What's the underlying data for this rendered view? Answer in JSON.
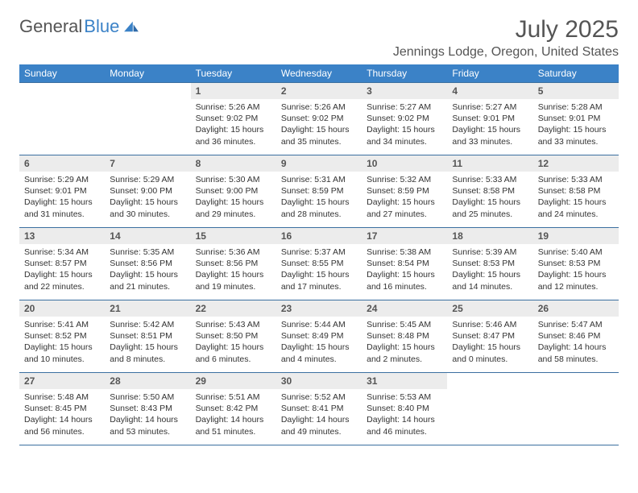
{
  "brand": {
    "name1": "General",
    "name2": "Blue"
  },
  "title": "July 2025",
  "location": "Jennings Lodge, Oregon, United States",
  "styling": {
    "header_bg": "#3b82c7",
    "header_text_color": "#ffffff",
    "daynum_bg": "#ececec",
    "border_color": "#3b6fa0",
    "page_bg": "#ffffff",
    "body_text_color": "#333333",
    "title_color": "#555555",
    "font_family": "Arial",
    "title_fontsize_pt": 22,
    "location_fontsize_pt": 12,
    "header_fontsize_pt": 9,
    "daynum_fontsize_pt": 9,
    "body_fontsize_pt": 8
  },
  "weekdays": [
    "Sunday",
    "Monday",
    "Tuesday",
    "Wednesday",
    "Thursday",
    "Friday",
    "Saturday"
  ],
  "labels": {
    "sunrise": "Sunrise:",
    "sunset": "Sunset:",
    "daylight": "Daylight:"
  },
  "weeks": [
    [
      null,
      null,
      {
        "n": "1",
        "sr": "5:26 AM",
        "ss": "9:02 PM",
        "dl": "15 hours and 36 minutes."
      },
      {
        "n": "2",
        "sr": "5:26 AM",
        "ss": "9:02 PM",
        "dl": "15 hours and 35 minutes."
      },
      {
        "n": "3",
        "sr": "5:27 AM",
        "ss": "9:02 PM",
        "dl": "15 hours and 34 minutes."
      },
      {
        "n": "4",
        "sr": "5:27 AM",
        "ss": "9:01 PM",
        "dl": "15 hours and 33 minutes."
      },
      {
        "n": "5",
        "sr": "5:28 AM",
        "ss": "9:01 PM",
        "dl": "15 hours and 33 minutes."
      }
    ],
    [
      {
        "n": "6",
        "sr": "5:29 AM",
        "ss": "9:01 PM",
        "dl": "15 hours and 31 minutes."
      },
      {
        "n": "7",
        "sr": "5:29 AM",
        "ss": "9:00 PM",
        "dl": "15 hours and 30 minutes."
      },
      {
        "n": "8",
        "sr": "5:30 AM",
        "ss": "9:00 PM",
        "dl": "15 hours and 29 minutes."
      },
      {
        "n": "9",
        "sr": "5:31 AM",
        "ss": "8:59 PM",
        "dl": "15 hours and 28 minutes."
      },
      {
        "n": "10",
        "sr": "5:32 AM",
        "ss": "8:59 PM",
        "dl": "15 hours and 27 minutes."
      },
      {
        "n": "11",
        "sr": "5:33 AM",
        "ss": "8:58 PM",
        "dl": "15 hours and 25 minutes."
      },
      {
        "n": "12",
        "sr": "5:33 AM",
        "ss": "8:58 PM",
        "dl": "15 hours and 24 minutes."
      }
    ],
    [
      {
        "n": "13",
        "sr": "5:34 AM",
        "ss": "8:57 PM",
        "dl": "15 hours and 22 minutes."
      },
      {
        "n": "14",
        "sr": "5:35 AM",
        "ss": "8:56 PM",
        "dl": "15 hours and 21 minutes."
      },
      {
        "n": "15",
        "sr": "5:36 AM",
        "ss": "8:56 PM",
        "dl": "15 hours and 19 minutes."
      },
      {
        "n": "16",
        "sr": "5:37 AM",
        "ss": "8:55 PM",
        "dl": "15 hours and 17 minutes."
      },
      {
        "n": "17",
        "sr": "5:38 AM",
        "ss": "8:54 PM",
        "dl": "15 hours and 16 minutes."
      },
      {
        "n": "18",
        "sr": "5:39 AM",
        "ss": "8:53 PM",
        "dl": "15 hours and 14 minutes."
      },
      {
        "n": "19",
        "sr": "5:40 AM",
        "ss": "8:53 PM",
        "dl": "15 hours and 12 minutes."
      }
    ],
    [
      {
        "n": "20",
        "sr": "5:41 AM",
        "ss": "8:52 PM",
        "dl": "15 hours and 10 minutes."
      },
      {
        "n": "21",
        "sr": "5:42 AM",
        "ss": "8:51 PM",
        "dl": "15 hours and 8 minutes."
      },
      {
        "n": "22",
        "sr": "5:43 AM",
        "ss": "8:50 PM",
        "dl": "15 hours and 6 minutes."
      },
      {
        "n": "23",
        "sr": "5:44 AM",
        "ss": "8:49 PM",
        "dl": "15 hours and 4 minutes."
      },
      {
        "n": "24",
        "sr": "5:45 AM",
        "ss": "8:48 PM",
        "dl": "15 hours and 2 minutes."
      },
      {
        "n": "25",
        "sr": "5:46 AM",
        "ss": "8:47 PM",
        "dl": "15 hours and 0 minutes."
      },
      {
        "n": "26",
        "sr": "5:47 AM",
        "ss": "8:46 PM",
        "dl": "14 hours and 58 minutes."
      }
    ],
    [
      {
        "n": "27",
        "sr": "5:48 AM",
        "ss": "8:45 PM",
        "dl": "14 hours and 56 minutes."
      },
      {
        "n": "28",
        "sr": "5:50 AM",
        "ss": "8:43 PM",
        "dl": "14 hours and 53 minutes."
      },
      {
        "n": "29",
        "sr": "5:51 AM",
        "ss": "8:42 PM",
        "dl": "14 hours and 51 minutes."
      },
      {
        "n": "30",
        "sr": "5:52 AM",
        "ss": "8:41 PM",
        "dl": "14 hours and 49 minutes."
      },
      {
        "n": "31",
        "sr": "5:53 AM",
        "ss": "8:40 PM",
        "dl": "14 hours and 46 minutes."
      },
      null,
      null
    ]
  ]
}
